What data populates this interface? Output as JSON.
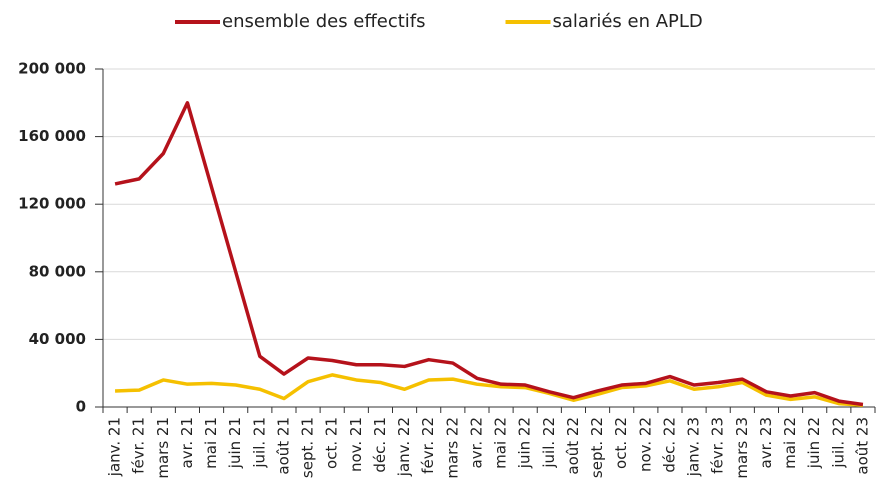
{
  "chart_data": {
    "type": "line",
    "categories": [
      "janv. 21",
      "févr. 21",
      "mars 21",
      "avr. 21",
      "mai 21",
      "juin 21",
      "juil. 21",
      "août 21",
      "sept. 21",
      "oct. 21",
      "nov. 21",
      "déc. 21",
      "janv. 22",
      "févr. 22",
      "mars 22",
      "avr. 22",
      "mai 22",
      "juin 22",
      "juil. 22",
      "août 22",
      "sept. 22",
      "oct. 22",
      "nov. 22",
      "déc. 22",
      "janv. 23",
      "févr. 23",
      "mars 23",
      "avr. 23",
      "mai 22",
      "juin 22",
      "juil. 22",
      "août 23"
    ],
    "series": [
      {
        "name": "ensemble des effectifs",
        "color": "#b5121b",
        "values": [
          132000,
          135000,
          150000,
          180000,
          130000,
          80000,
          30000,
          19500,
          29000,
          27500,
          25000,
          25000,
          24000,
          28000,
          26000,
          17000,
          13500,
          13000,
          9000,
          5500,
          9500,
          13000,
          14000,
          18000,
          13000,
          14500,
          16500,
          9000,
          6500,
          8500,
          3500,
          1500
        ]
      },
      {
        "name": "salariés en APLD",
        "color": "#f5c000",
        "values": [
          9500,
          10000,
          16000,
          13500,
          14000,
          13000,
          10500,
          5000,
          15000,
          19000,
          16000,
          14500,
          10500,
          16000,
          16500,
          13500,
          12000,
          11500,
          8000,
          4000,
          7500,
          11500,
          12500,
          15500,
          10500,
          12000,
          14500,
          7000,
          4500,
          6000,
          2000,
          1000
        ]
      }
    ],
    "ylim": [
      0,
      200000
    ],
    "yticks": [
      0,
      {
        "value": 40000,
        "label": "40 000"
      },
      {
        "value": 80000,
        "label": "80 000"
      },
      {
        "value": 120000,
        "label": "120 000"
      },
      {
        "value": 160000,
        "label": "160 000"
      },
      {
        "value": 200000,
        "label": "200 000"
      }
    ],
    "grid": true,
    "legend": "top"
  }
}
